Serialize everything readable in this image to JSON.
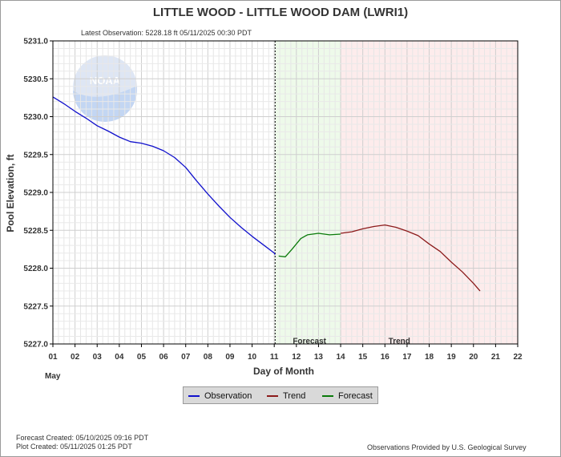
{
  "chart_data": {
    "type": "line",
    "title": "LITTLE WOOD - LITTLE WOOD DAM  (LWRI1)",
    "subtitle": "Latest Observation: 5228.18 ft 05/11/2025 00:30 PDT",
    "xlabel": "Day of Month",
    "ylabel": "Pool Elevation, ft",
    "x_month_label": "May",
    "xlim": [
      1,
      22
    ],
    "ylim": [
      5227.0,
      5231.0
    ],
    "x_ticks": [
      "01",
      "02",
      "03",
      "04",
      "05",
      "06",
      "07",
      "08",
      "09",
      "10",
      "11",
      "12",
      "13",
      "14",
      "15",
      "16",
      "17",
      "18",
      "19",
      "20",
      "21",
      "22"
    ],
    "y_ticks": [
      "5227.0",
      "5227.5",
      "5228.0",
      "5228.5",
      "5229.0",
      "5229.5",
      "5230.0",
      "5230.5",
      "5231.0"
    ],
    "grid": true,
    "regions": [
      {
        "name": "Forecast",
        "x_start": 11.04,
        "x_end": 14.0,
        "color": "#eefaea"
      },
      {
        "name": "Trend",
        "x_start": 14.0,
        "x_end": 22.0,
        "color": "#fdecec"
      }
    ],
    "series": [
      {
        "name": "Observation",
        "color": "#1010cc",
        "x": [
          1.0,
          1.5,
          2.0,
          2.5,
          3.0,
          3.5,
          4.0,
          4.5,
          5.0,
          5.5,
          6.0,
          6.5,
          7.0,
          7.5,
          8.0,
          8.5,
          9.0,
          9.5,
          10.0,
          10.5,
          11.0,
          11.04
        ],
        "y": [
          5230.26,
          5230.17,
          5230.07,
          5229.98,
          5229.88,
          5229.81,
          5229.73,
          5229.67,
          5229.65,
          5229.61,
          5229.55,
          5229.46,
          5229.33,
          5229.15,
          5228.98,
          5228.82,
          5228.67,
          5228.54,
          5228.42,
          5228.31,
          5228.2,
          5228.18
        ]
      },
      {
        "name": "Forecast",
        "color": "#0a7a0a",
        "x": [
          11.2,
          11.5,
          11.8,
          12.2,
          12.5,
          13.0,
          13.5,
          14.0
        ],
        "y": [
          5228.16,
          5228.15,
          5228.25,
          5228.39,
          5228.44,
          5228.46,
          5228.44,
          5228.45
        ]
      },
      {
        "name": "Trend",
        "color": "#8b1a1a",
        "x": [
          14.0,
          14.5,
          15.0,
          15.5,
          16.0,
          16.5,
          17.0,
          17.5,
          18.0,
          18.5,
          19.0,
          19.5,
          20.0,
          20.3
        ],
        "y": [
          5228.46,
          5228.48,
          5228.52,
          5228.55,
          5228.57,
          5228.54,
          5228.49,
          5228.43,
          5228.32,
          5228.22,
          5228.08,
          5227.95,
          5227.8,
          5227.7
        ]
      }
    ],
    "region_labels": [
      "Forecast",
      "Trend"
    ]
  },
  "legend": {
    "items": [
      {
        "label": "Observation",
        "color": "#1010cc"
      },
      {
        "label": "Trend",
        "color": "#8b1a1a"
      },
      {
        "label": "Forecast",
        "color": "#0a7a0a"
      }
    ]
  },
  "watermark": {
    "text": "NOAA"
  },
  "footer": {
    "forecast_created": "Forecast Created: 05/10/2025 09:16 PDT",
    "plot_created": "Plot Created: 05/11/2025 01:25 PDT",
    "credit": "Observations Provided by U.S. Geological Survey"
  }
}
